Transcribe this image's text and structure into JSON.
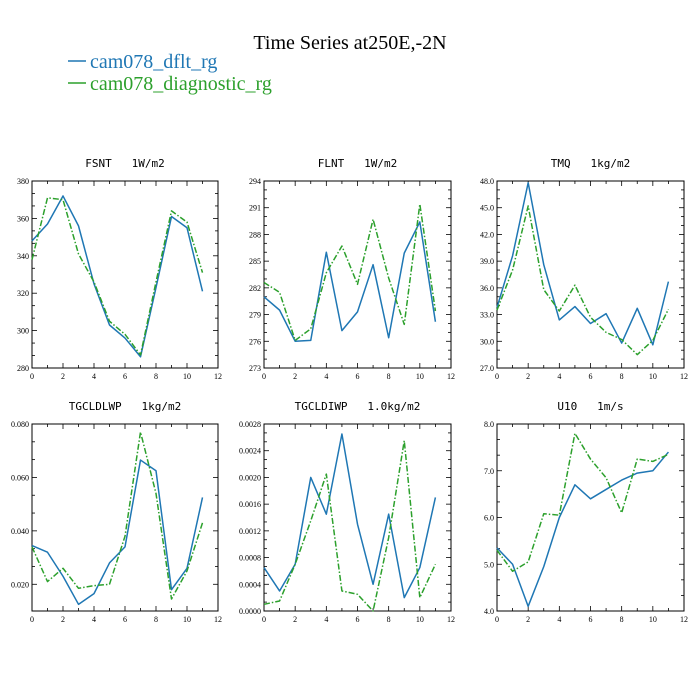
{
  "figure": {
    "title": "Time Series at250E,-2N",
    "legend": [
      {
        "name": "cam078_dflt_rg",
        "color": "#1f77b4",
        "dash": "solid"
      },
      {
        "name": "cam078_diagnostic_rg",
        "color": "#2ca02c",
        "dash": "dashdot"
      }
    ]
  },
  "chart_data": [
    {
      "type": "line",
      "title": "FSNT   1W/m2",
      "x": [
        0,
        1,
        2,
        3,
        4,
        5,
        6,
        7,
        8,
        9,
        10,
        11
      ],
      "xlim": [
        0,
        12
      ],
      "xticks": [
        "0",
        "2",
        "4",
        "6",
        "8",
        "10",
        "12"
      ],
      "ylim": [
        280,
        380
      ],
      "yticks": [
        "280",
        "300",
        "320",
        "340",
        "360",
        "380"
      ],
      "series": [
        {
          "name": "cam078_dflt_rg",
          "values": [
            348,
            357,
            372,
            356,
            325,
            303,
            296,
            286,
            323,
            361,
            355,
            321
          ]
        },
        {
          "name": "cam078_diagnostic_rg",
          "values": [
            338,
            371,
            370,
            341,
            326,
            305,
            298,
            287,
            326,
            364,
            358,
            331
          ]
        }
      ]
    },
    {
      "type": "line",
      "title": "FLNT   1W/m2",
      "x": [
        0,
        1,
        2,
        3,
        4,
        5,
        6,
        7,
        8,
        9,
        10,
        11
      ],
      "xlim": [
        0,
        12
      ],
      "xticks": [
        "0",
        "2",
        "4",
        "6",
        "8",
        "10",
        "12"
      ],
      "ylim": [
        273,
        294
      ],
      "yticks": [
        "273",
        "276",
        "279",
        "282",
        "285",
        "288",
        "291",
        "294"
      ],
      "series": [
        {
          "name": "cam078_dflt_rg",
          "values": [
            281.0,
            279.5,
            276.0,
            276.1,
            286.0,
            277.2,
            279.3,
            284.6,
            276.4,
            285.9,
            289.4,
            278.2
          ]
        },
        {
          "name": "cam078_diagnostic_rg",
          "values": [
            282.6,
            281.5,
            276.1,
            277.4,
            283.7,
            286.7,
            282.4,
            289.7,
            283.1,
            277.9,
            291.4,
            279.4
          ]
        }
      ]
    },
    {
      "type": "line",
      "title": "TMQ   1kg/m2",
      "x": [
        0,
        1,
        2,
        3,
        4,
        5,
        6,
        7,
        8,
        9,
        10,
        11
      ],
      "xlim": [
        0,
        12
      ],
      "xticks": [
        "0",
        "2",
        "4",
        "6",
        "8",
        "10",
        "12"
      ],
      "ylim": [
        27.0,
        48.0
      ],
      "yticks": [
        "27.0",
        "30.0",
        "33.0",
        "36.0",
        "39.0",
        "42.0",
        "45.0",
        "48.0"
      ],
      "series": [
        {
          "name": "cam078_dflt_rg",
          "values": [
            33.8,
            39.6,
            47.8,
            38.6,
            32.4,
            33.9,
            32.0,
            33.1,
            29.8,
            33.7,
            29.6,
            36.7
          ]
        },
        {
          "name": "cam078_diagnostic_rg",
          "values": [
            33.5,
            38.0,
            45.2,
            35.8,
            33.4,
            36.3,
            32.7,
            31.0,
            30.2,
            28.5,
            30.1,
            33.6
          ]
        }
      ]
    },
    {
      "type": "line",
      "title": "TGCLDLWP   1kg/m2",
      "x": [
        0,
        1,
        2,
        3,
        4,
        5,
        6,
        7,
        8,
        9,
        10,
        11
      ],
      "xlim": [
        0,
        12
      ],
      "xticks": [
        "0",
        "2",
        "4",
        "6",
        "8",
        "10",
        "12"
      ],
      "ylim": [
        0.01,
        0.08
      ],
      "yticks": [
        "0.020",
        "0.040",
        "0.060",
        "0.080"
      ],
      "ytick_values": [
        0.02,
        0.04,
        0.06,
        0.08
      ],
      "series": [
        {
          "name": "cam078_dflt_rg",
          "values": [
            0.0345,
            0.032,
            0.023,
            0.0125,
            0.0165,
            0.028,
            0.034,
            0.0665,
            0.0625,
            0.018,
            0.026,
            0.0525
          ]
        },
        {
          "name": "cam078_diagnostic_rg",
          "values": [
            0.034,
            0.021,
            0.026,
            0.0185,
            0.0195,
            0.02,
            0.038,
            0.077,
            0.054,
            0.0145,
            0.025,
            0.043
          ]
        }
      ]
    },
    {
      "type": "line",
      "title": "TGCLDIWP   1.0kg/m2",
      "x": [
        0,
        1,
        2,
        3,
        4,
        5,
        6,
        7,
        8,
        9,
        10,
        11
      ],
      "xlim": [
        0,
        12
      ],
      "xticks": [
        "0",
        "2",
        "4",
        "6",
        "8",
        "10",
        "12"
      ],
      "ylim": [
        0.0,
        0.0028
      ],
      "yticks": [
        "0.0000",
        "0.0004",
        "0.0008",
        "0.0012",
        "0.0016",
        "0.0020",
        "0.0024",
        "0.0028"
      ],
      "series": [
        {
          "name": "cam078_dflt_rg",
          "values": [
            0.00065,
            0.0003,
            0.0007,
            0.002,
            0.00145,
            0.00265,
            0.0013,
            0.0004,
            0.00145,
            0.0002,
            0.00065,
            0.0017
          ]
        },
        {
          "name": "cam078_diagnostic_rg",
          "values": [
            0.0001,
            0.00015,
            0.0007,
            0.00135,
            0.00205,
            0.0003,
            0.00025,
            0.0,
            0.0011,
            0.00255,
            0.0002,
            0.0007
          ]
        }
      ]
    },
    {
      "type": "line",
      "title": "U10   1m/s",
      "x": [
        0,
        1,
        2,
        3,
        4,
        5,
        6,
        7,
        8,
        9,
        10,
        11
      ],
      "xlim": [
        0,
        12
      ],
      "xticks": [
        "0",
        "2",
        "4",
        "6",
        "8",
        "10",
        "12"
      ],
      "ylim": [
        4.0,
        8.0
      ],
      "yticks": [
        "4.0",
        "5.0",
        "6.0",
        "7.0",
        "8.0"
      ],
      "series": [
        {
          "name": "cam078_dflt_rg",
          "values": [
            5.35,
            5.0,
            4.1,
            4.95,
            6.0,
            6.7,
            6.4,
            6.6,
            6.8,
            6.95,
            7.0,
            7.4
          ]
        },
        {
          "name": "cam078_diagnostic_rg",
          "values": [
            5.3,
            4.85,
            5.05,
            6.08,
            6.05,
            7.8,
            7.25,
            6.85,
            6.1,
            7.25,
            7.2,
            7.35
          ]
        }
      ]
    }
  ]
}
